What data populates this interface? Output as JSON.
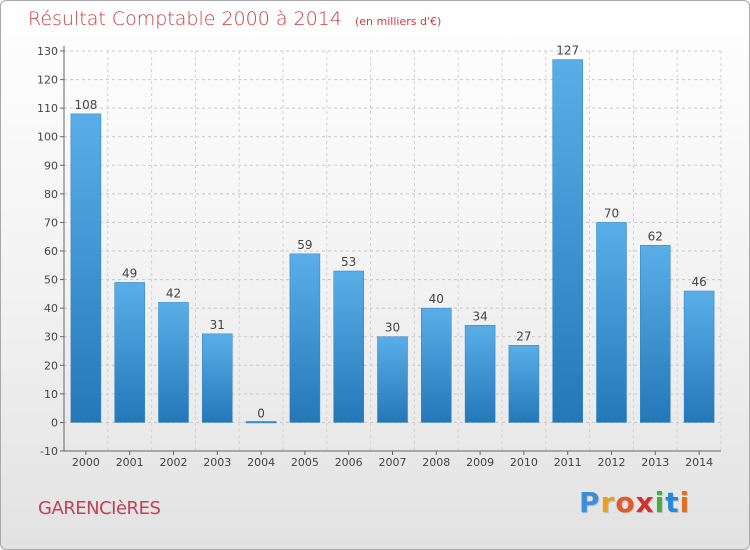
{
  "header": {
    "title": "Résultat Comptable 2000 à 2014",
    "unit": "(en milliers d'€)"
  },
  "footer": {
    "commune": "GARENCIèRES",
    "logo": [
      "P",
      "r",
      "o",
      "x",
      "i",
      "t",
      "i"
    ],
    "logo_colors": [
      "#3a8fd8",
      "#e8a020",
      "#e05a2a",
      "#d03030",
      "#40b040",
      "#2a88d8",
      "#e07020"
    ]
  },
  "chart_data": {
    "type": "bar",
    "categories": [
      "2000",
      "2001",
      "2002",
      "2003",
      "2004",
      "2005",
      "2006",
      "2007",
      "2008",
      "2009",
      "2010",
      "2011",
      "2012",
      "2013",
      "2014"
    ],
    "values": [
      108,
      49,
      42,
      31,
      0,
      59,
      53,
      30,
      40,
      34,
      27,
      127,
      70,
      62,
      46
    ],
    "data_labels": [
      "108",
      "49",
      "42",
      "31",
      "0",
      "59",
      "53",
      "30",
      "40",
      "34",
      "27",
      "127",
      "70",
      "62",
      "46"
    ],
    "ylim": [
      -10,
      130
    ],
    "yticks": [
      -10,
      0,
      10,
      20,
      30,
      40,
      50,
      60,
      70,
      80,
      90,
      100,
      110,
      120,
      130
    ],
    "ytick_labels": [
      "-10",
      "0",
      "10",
      "20",
      "30",
      "40",
      "50",
      "60",
      "70",
      "80",
      "90",
      "100",
      "110",
      "120",
      "130"
    ],
    "grid": true,
    "bar_color": "#3c96d8"
  }
}
